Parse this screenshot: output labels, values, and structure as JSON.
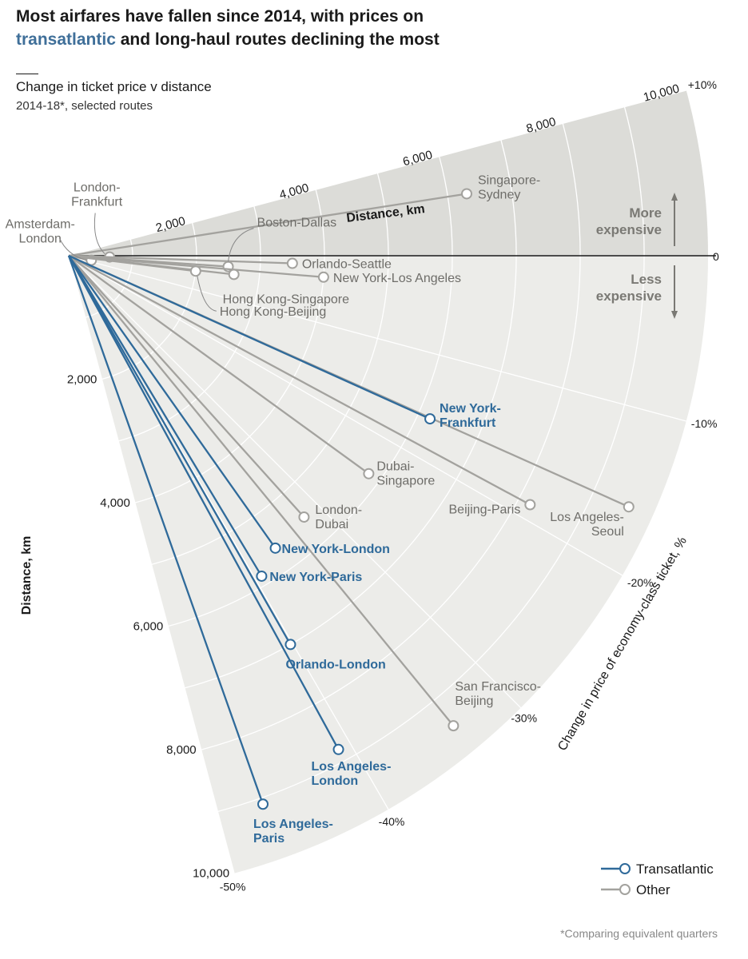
{
  "title": {
    "line1": "Most airfares have fallen since 2014, with prices on",
    "highlight": "transatlantic",
    "line2_rest": " and long-haul routes declining the most"
  },
  "subtitle": "Change in ticket price v distance",
  "subtitle2": "2014-18*, selected routes",
  "footnote": "*Comparing equivalent quarters",
  "colors": {
    "transatlantic": "#2f6a9a",
    "other": "#a3a29e",
    "label_other": "#6e6d69",
    "sector_dark": "#dcdcd8",
    "sector_light": "#ecece9",
    "grid": "#ffffff"
  },
  "chart_data": {
    "type": "radial-scatter",
    "angle_axis": {
      "label": "Change in price of economy-class ticket, %",
      "range": [
        -50,
        10
      ],
      "ticks": [
        {
          "value": 10,
          "label": "+10%"
        },
        {
          "value": 0,
          "label": "0"
        },
        {
          "value": -10,
          "label": "-10%"
        },
        {
          "value": -20,
          "label": "-20%"
        },
        {
          "value": -30,
          "label": "-30%"
        },
        {
          "value": -40,
          "label": "-40%"
        },
        {
          "value": -50,
          "label": "-50%"
        }
      ]
    },
    "radial_axis": {
      "label": "Distance, km",
      "range": [
        0,
        10000
      ],
      "ticks": [
        {
          "value": 2000,
          "label": "2,000"
        },
        {
          "value": 4000,
          "label": "4,000"
        },
        {
          "value": 6000,
          "label": "6,000"
        },
        {
          "value": 8000,
          "label": "8,000"
        },
        {
          "value": 10000,
          "label": "10,000"
        }
      ]
    },
    "annotations": {
      "more": [
        "More",
        "expensive"
      ],
      "less": [
        "Less",
        "expensive"
      ]
    },
    "legend": [
      {
        "key": "transatlantic",
        "label": "Transatlantic"
      },
      {
        "key": "other",
        "label": "Other"
      }
    ],
    "routes": [
      {
        "name": "Singapore-Sydney",
        "label": [
          "Singapore-",
          "Sydney"
        ],
        "distance_km": 6300,
        "change_pct": 5.9,
        "group": "other"
      },
      {
        "name": "Amsterdam-London",
        "label": [
          "Amsterdam-",
          "London"
        ],
        "distance_km": 360,
        "change_pct": -7.5,
        "group": "other"
      },
      {
        "name": "London-Frankfurt",
        "label": [
          "London-",
          "Frankfurt"
        ],
        "distance_km": 640,
        "change_pct": -1.2,
        "group": "other"
      },
      {
        "name": "Orlando-Seattle",
        "label": [
          "Orlando-Seattle"
        ],
        "distance_km": 3500,
        "change_pct": -1.3,
        "group": "other"
      },
      {
        "name": "Boston-Dallas",
        "label": [
          "Boston-Dallas"
        ],
        "distance_km": 2500,
        "change_pct": -2.6,
        "group": "other"
      },
      {
        "name": "Hong Kong-Singapore",
        "label": [
          "Hong Kong-Singapore"
        ],
        "distance_km": 2600,
        "change_pct": -4.3,
        "group": "other"
      },
      {
        "name": "New York-Los Angeles",
        "label": [
          "New York-Los Angeles"
        ],
        "distance_km": 4000,
        "change_pct": -3.2,
        "group": "other"
      },
      {
        "name": "Hong Kong-Beijing",
        "label": [
          "Hong Kong-Beijing"
        ],
        "distance_km": 2000,
        "change_pct": -4.6,
        "group": "other"
      },
      {
        "name": "New York-Frankfurt",
        "label": [
          "New York-",
          "Frankfurt"
        ],
        "distance_km": 6200,
        "change_pct": -16.2,
        "group": "transatlantic"
      },
      {
        "name": "London-Dubai",
        "label": [
          "London-",
          "Dubai"
        ],
        "distance_km": 5500,
        "change_pct": -32.0,
        "group": "other"
      },
      {
        "name": "Dubai-Singapore",
        "label": [
          "Dubai-",
          "Singapore"
        ],
        "distance_km": 5800,
        "change_pct": -24.0,
        "group": "other"
      },
      {
        "name": "New York-London",
        "label": [
          "New York-London"
        ],
        "distance_km": 5600,
        "change_pct": -36.5,
        "group": "transatlantic"
      },
      {
        "name": "New York-Paris",
        "label": [
          "New York-Paris"
        ],
        "distance_km": 5850,
        "change_pct": -39.3,
        "group": "transatlantic"
      },
      {
        "name": "Beijing-Paris",
        "label": [
          "Beijing-Paris"
        ],
        "distance_km": 8200,
        "change_pct": -18.9,
        "group": "other"
      },
      {
        "name": "Los Angeles-Seoul",
        "label": [
          "Los Angeles-",
          "Seoul"
        ],
        "distance_km": 9600,
        "change_pct": -16.1,
        "group": "other"
      },
      {
        "name": "Orlando-London",
        "label": [
          "Orlando-London"
        ],
        "distance_km": 7000,
        "change_pct": -40.2,
        "group": "transatlantic"
      },
      {
        "name": "San Francisco-Beijing",
        "label": [
          "San Francisco-",
          "Beijing"
        ],
        "distance_km": 9500,
        "change_pct": -33.8,
        "group": "other"
      },
      {
        "name": "Los Angeles-London",
        "label": [
          "Los Angeles-",
          "London"
        ],
        "distance_km": 8800,
        "change_pct": -40.9,
        "group": "transatlantic"
      },
      {
        "name": "Los Angeles-Paris",
        "label": [
          "Los Angeles-",
          "Paris"
        ],
        "distance_km": 9100,
        "change_pct": -47.0,
        "group": "transatlantic"
      }
    ]
  }
}
